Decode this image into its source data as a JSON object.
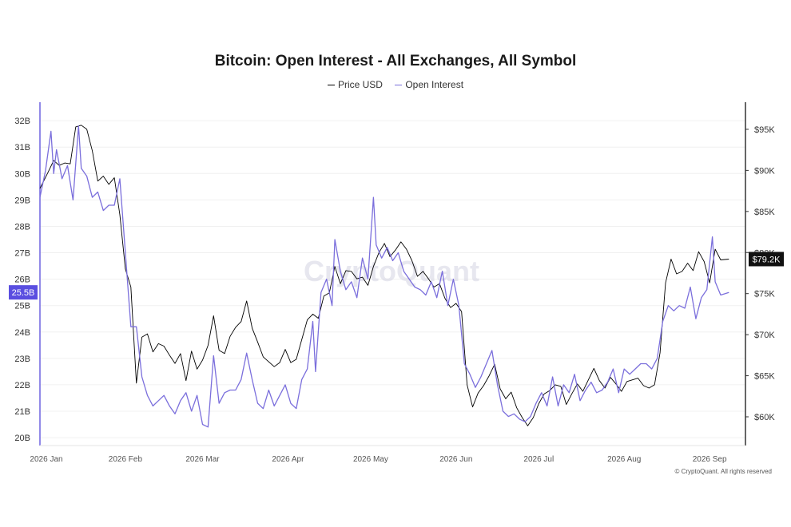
{
  "chart_data": {
    "type": "line",
    "title": "Bitcoin: Open Interest - All Exchanges, All Symbol",
    "x_ticks": [
      "2026 Jan",
      "2026 Feb",
      "2026 Mar",
      "2026 Apr",
      "2026 May",
      "2026 Jun",
      "2026 Jul",
      "2026 Aug",
      "2026 Sep"
    ],
    "x_range": [
      "2026-01-01",
      "2026-09-14"
    ],
    "y_left": {
      "ticks": [
        "20B",
        "21B",
        "22B",
        "23B",
        "24B",
        "25B",
        "26B",
        "27B",
        "28B",
        "29B",
        "30B",
        "31B",
        "32B"
      ],
      "range": [
        19.7,
        32.7
      ],
      "unit": "B"
    },
    "y_right": {
      "ticks": [
        "$60K",
        "$65K",
        "$70K",
        "$75K",
        "$80K",
        "$85K",
        "$90K",
        "$95K"
      ],
      "range": [
        56500,
        98300
      ]
    },
    "last_labels": {
      "open_interest": "25.5B",
      "price": "$79.2K"
    },
    "grid": true,
    "legend_position": "top-center",
    "series": [
      {
        "name": "Price USD",
        "axis": "right",
        "color": "#000000",
        "points": [
          [
            "2026-01-01",
            87800
          ],
          [
            "2026-01-04",
            89800
          ],
          [
            "2026-01-06",
            91200
          ],
          [
            "2026-01-08",
            90600
          ],
          [
            "2026-01-10",
            90900
          ],
          [
            "2026-01-12",
            90800
          ],
          [
            "2026-01-14",
            95300
          ],
          [
            "2026-01-16",
            95500
          ],
          [
            "2026-01-18",
            95000
          ],
          [
            "2026-01-20",
            92400
          ],
          [
            "2026-01-22",
            88700
          ],
          [
            "2026-01-24",
            89300
          ],
          [
            "2026-01-26",
            88300
          ],
          [
            "2026-01-28",
            89100
          ],
          [
            "2026-01-30",
            84600
          ],
          [
            "2026-02-01",
            78000
          ],
          [
            "2026-02-03",
            75800
          ],
          [
            "2026-02-05",
            64100
          ],
          [
            "2026-02-07",
            69700
          ],
          [
            "2026-02-09",
            70100
          ],
          [
            "2026-02-11",
            67900
          ],
          [
            "2026-02-13",
            68900
          ],
          [
            "2026-02-15",
            68600
          ],
          [
            "2026-02-17",
            67500
          ],
          [
            "2026-02-19",
            66500
          ],
          [
            "2026-02-21",
            67700
          ],
          [
            "2026-02-23",
            64400
          ],
          [
            "2026-02-25",
            68000
          ],
          [
            "2026-02-27",
            65800
          ],
          [
            "2026-03-01",
            66900
          ],
          [
            "2026-03-03",
            68700
          ],
          [
            "2026-03-05",
            72300
          ],
          [
            "2026-03-07",
            68100
          ],
          [
            "2026-03-09",
            67700
          ],
          [
            "2026-03-11",
            69800
          ],
          [
            "2026-03-13",
            70900
          ],
          [
            "2026-03-15",
            71600
          ],
          [
            "2026-03-17",
            74100
          ],
          [
            "2026-03-19",
            70800
          ],
          [
            "2026-03-21",
            69100
          ],
          [
            "2026-03-23",
            67300
          ],
          [
            "2026-03-25",
            66700
          ],
          [
            "2026-03-27",
            66100
          ],
          [
            "2026-03-29",
            66600
          ],
          [
            "2026-03-31",
            68200
          ],
          [
            "2026-04-02",
            66600
          ],
          [
            "2026-04-04",
            67000
          ],
          [
            "2026-04-06",
            69400
          ],
          [
            "2026-04-08",
            71800
          ],
          [
            "2026-04-10",
            72500
          ],
          [
            "2026-04-12",
            72000
          ],
          [
            "2026-04-14",
            74700
          ],
          [
            "2026-04-16",
            75100
          ],
          [
            "2026-04-18",
            78300
          ],
          [
            "2026-04-20",
            76200
          ],
          [
            "2026-04-22",
            77800
          ],
          [
            "2026-04-24",
            77700
          ],
          [
            "2026-04-26",
            76800
          ],
          [
            "2026-04-28",
            77000
          ],
          [
            "2026-04-30",
            76000
          ],
          [
            "2026-05-02",
            78300
          ],
          [
            "2026-05-04",
            80000
          ],
          [
            "2026-05-06",
            81100
          ],
          [
            "2026-05-08",
            79500
          ],
          [
            "2026-05-10",
            80300
          ],
          [
            "2026-05-12",
            81300
          ],
          [
            "2026-05-14",
            80400
          ],
          [
            "2026-05-16",
            79000
          ],
          [
            "2026-05-18",
            77100
          ],
          [
            "2026-05-20",
            77700
          ],
          [
            "2026-05-22",
            76800
          ],
          [
            "2026-05-24",
            75800
          ],
          [
            "2026-05-26",
            76200
          ],
          [
            "2026-05-28",
            74400
          ],
          [
            "2026-05-30",
            73300
          ],
          [
            "2026-06-01",
            73800
          ],
          [
            "2026-06-03",
            72800
          ],
          [
            "2026-06-05",
            63900
          ],
          [
            "2026-06-07",
            61200
          ],
          [
            "2026-06-09",
            62900
          ],
          [
            "2026-06-11",
            63800
          ],
          [
            "2026-06-13",
            65000
          ],
          [
            "2026-06-15",
            66400
          ],
          [
            "2026-06-17",
            63400
          ],
          [
            "2026-06-19",
            62200
          ],
          [
            "2026-06-21",
            63000
          ],
          [
            "2026-06-23",
            61100
          ],
          [
            "2026-06-25",
            59900
          ],
          [
            "2026-06-27",
            58900
          ],
          [
            "2026-06-29",
            59900
          ],
          [
            "2026-07-01",
            61600
          ],
          [
            "2026-07-03",
            62800
          ],
          [
            "2026-07-05",
            63200
          ],
          [
            "2026-07-07",
            63900
          ],
          [
            "2026-07-09",
            63700
          ],
          [
            "2026-07-11",
            61500
          ],
          [
            "2026-07-13",
            62800
          ],
          [
            "2026-07-15",
            64000
          ],
          [
            "2026-07-17",
            63100
          ],
          [
            "2026-07-19",
            64500
          ],
          [
            "2026-07-21",
            65900
          ],
          [
            "2026-07-23",
            64400
          ],
          [
            "2026-07-25",
            63500
          ],
          [
            "2026-07-27",
            64800
          ],
          [
            "2026-07-29",
            64000
          ],
          [
            "2026-07-31",
            63100
          ],
          [
            "2026-08-02",
            64300
          ],
          [
            "2026-08-04",
            64500
          ],
          [
            "2026-08-06",
            64700
          ],
          [
            "2026-08-08",
            63800
          ],
          [
            "2026-08-10",
            63500
          ],
          [
            "2026-08-12",
            63900
          ],
          [
            "2026-08-14",
            67800
          ],
          [
            "2026-08-16",
            76300
          ],
          [
            "2026-08-18",
            79200
          ],
          [
            "2026-08-20",
            77400
          ],
          [
            "2026-08-22",
            77700
          ],
          [
            "2026-08-24",
            78700
          ],
          [
            "2026-08-26",
            77800
          ],
          [
            "2026-08-28",
            80100
          ],
          [
            "2026-08-30",
            78900
          ],
          [
            "2026-09-01",
            76300
          ],
          [
            "2026-09-03",
            80400
          ],
          [
            "2026-09-05",
            79100
          ],
          [
            "2026-09-08",
            79200
          ]
        ]
      },
      {
        "name": "Open Interest",
        "axis": "left",
        "color": "#7b6fdc",
        "points": [
          [
            "2026-01-01",
            29.1
          ],
          [
            "2026-01-03",
            30.1
          ],
          [
            "2026-01-05",
            31.6
          ],
          [
            "2026-01-06",
            30.0
          ],
          [
            "2026-01-07",
            30.9
          ],
          [
            "2026-01-09",
            29.8
          ],
          [
            "2026-01-11",
            30.3
          ],
          [
            "2026-01-13",
            29.0
          ],
          [
            "2026-01-15",
            31.8
          ],
          [
            "2026-01-16",
            30.2
          ],
          [
            "2026-01-18",
            29.9
          ],
          [
            "2026-01-20",
            29.1
          ],
          [
            "2026-01-22",
            29.3
          ],
          [
            "2026-01-24",
            28.6
          ],
          [
            "2026-01-26",
            28.8
          ],
          [
            "2026-01-28",
            28.8
          ],
          [
            "2026-01-30",
            29.8
          ],
          [
            "2026-02-01",
            27.0
          ],
          [
            "2026-02-03",
            24.2
          ],
          [
            "2026-02-05",
            24.2
          ],
          [
            "2026-02-07",
            22.3
          ],
          [
            "2026-02-09",
            21.6
          ],
          [
            "2026-02-11",
            21.2
          ],
          [
            "2026-02-13",
            21.4
          ],
          [
            "2026-02-15",
            21.6
          ],
          [
            "2026-02-17",
            21.2
          ],
          [
            "2026-02-19",
            20.9
          ],
          [
            "2026-02-21",
            21.4
          ],
          [
            "2026-02-23",
            21.7
          ],
          [
            "2026-02-25",
            21.0
          ],
          [
            "2026-02-27",
            21.6
          ],
          [
            "2026-03-01",
            20.5
          ],
          [
            "2026-03-03",
            20.4
          ],
          [
            "2026-03-05",
            23.1
          ],
          [
            "2026-03-07",
            21.3
          ],
          [
            "2026-03-09",
            21.7
          ],
          [
            "2026-03-11",
            21.8
          ],
          [
            "2026-03-13",
            21.8
          ],
          [
            "2026-03-15",
            22.2
          ],
          [
            "2026-03-17",
            23.2
          ],
          [
            "2026-03-19",
            22.2
          ],
          [
            "2026-03-21",
            21.3
          ],
          [
            "2026-03-23",
            21.1
          ],
          [
            "2026-03-25",
            21.8
          ],
          [
            "2026-03-27",
            21.2
          ],
          [
            "2026-03-29",
            21.6
          ],
          [
            "2026-03-31",
            22.0
          ],
          [
            "2026-04-02",
            21.3
          ],
          [
            "2026-04-04",
            21.1
          ],
          [
            "2026-04-06",
            22.2
          ],
          [
            "2026-04-08",
            22.6
          ],
          [
            "2026-04-10",
            24.4
          ],
          [
            "2026-04-11",
            22.5
          ],
          [
            "2026-04-13",
            25.5
          ],
          [
            "2026-04-15",
            26.0
          ],
          [
            "2026-04-17",
            25.0
          ],
          [
            "2026-04-18",
            27.5
          ],
          [
            "2026-04-20",
            26.3
          ],
          [
            "2026-04-22",
            25.6
          ],
          [
            "2026-04-24",
            25.9
          ],
          [
            "2026-04-26",
            25.3
          ],
          [
            "2026-04-28",
            26.8
          ],
          [
            "2026-04-30",
            26.0
          ],
          [
            "2026-05-02",
            29.1
          ],
          [
            "2026-05-03",
            27.3
          ],
          [
            "2026-05-05",
            26.8
          ],
          [
            "2026-05-07",
            27.2
          ],
          [
            "2026-05-09",
            26.7
          ],
          [
            "2026-05-11",
            27.0
          ],
          [
            "2026-05-13",
            26.3
          ],
          [
            "2026-05-15",
            26.0
          ],
          [
            "2026-05-17",
            25.7
          ],
          [
            "2026-05-19",
            25.6
          ],
          [
            "2026-05-21",
            25.4
          ],
          [
            "2026-05-23",
            25.9
          ],
          [
            "2026-05-25",
            25.3
          ],
          [
            "2026-05-27",
            26.3
          ],
          [
            "2026-05-29",
            25.0
          ],
          [
            "2026-05-31",
            26.0
          ],
          [
            "2026-06-02",
            25.0
          ],
          [
            "2026-06-04",
            22.8
          ],
          [
            "2026-06-06",
            22.4
          ],
          [
            "2026-06-08",
            21.9
          ],
          [
            "2026-06-10",
            22.3
          ],
          [
            "2026-06-12",
            22.8
          ],
          [
            "2026-06-14",
            23.3
          ],
          [
            "2026-06-16",
            22.0
          ],
          [
            "2026-06-18",
            21.0
          ],
          [
            "2026-06-20",
            20.8
          ],
          [
            "2026-06-22",
            20.9
          ],
          [
            "2026-06-24",
            20.7
          ],
          [
            "2026-06-26",
            20.6
          ],
          [
            "2026-06-28",
            20.8
          ],
          [
            "2026-06-30",
            21.3
          ],
          [
            "2026-07-02",
            21.7
          ],
          [
            "2026-07-04",
            21.2
          ],
          [
            "2026-07-06",
            22.3
          ],
          [
            "2026-07-08",
            21.2
          ],
          [
            "2026-07-10",
            22.0
          ],
          [
            "2026-07-12",
            21.7
          ],
          [
            "2026-07-14",
            22.4
          ],
          [
            "2026-07-16",
            21.4
          ],
          [
            "2026-07-18",
            21.8
          ],
          [
            "2026-07-20",
            22.1
          ],
          [
            "2026-07-22",
            21.7
          ],
          [
            "2026-07-24",
            21.8
          ],
          [
            "2026-07-26",
            22.1
          ],
          [
            "2026-07-28",
            22.6
          ],
          [
            "2026-07-30",
            21.7
          ],
          [
            "2026-08-01",
            22.6
          ],
          [
            "2026-08-03",
            22.4
          ],
          [
            "2026-08-05",
            22.6
          ],
          [
            "2026-08-07",
            22.8
          ],
          [
            "2026-08-09",
            22.8
          ],
          [
            "2026-08-11",
            22.6
          ],
          [
            "2026-08-13",
            23.0
          ],
          [
            "2026-08-15",
            24.4
          ],
          [
            "2026-08-17",
            25.0
          ],
          [
            "2026-08-19",
            24.8
          ],
          [
            "2026-08-21",
            25.0
          ],
          [
            "2026-08-23",
            24.9
          ],
          [
            "2026-08-25",
            25.7
          ],
          [
            "2026-08-27",
            24.5
          ],
          [
            "2026-08-29",
            25.3
          ],
          [
            "2026-08-31",
            25.6
          ],
          [
            "2026-09-02",
            27.6
          ],
          [
            "2026-09-03",
            25.9
          ],
          [
            "2026-09-05",
            25.4
          ],
          [
            "2026-09-08",
            25.5
          ]
        ]
      }
    ]
  },
  "watermark": "CryptoQuant",
  "footer": "© CryptoQuant. All rights reserved"
}
